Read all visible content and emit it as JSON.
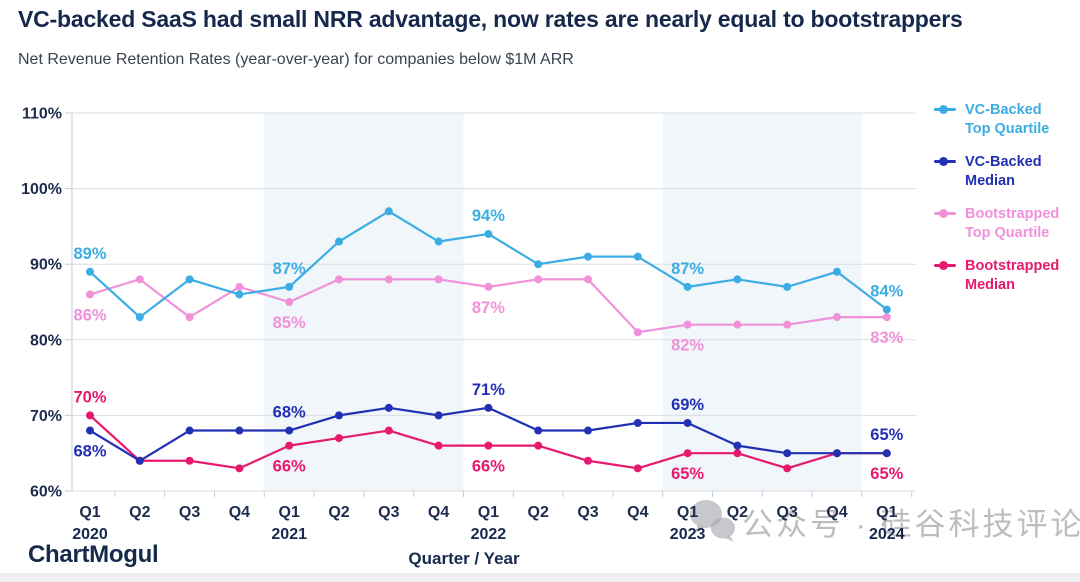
{
  "header": {
    "title": "VC-backed SaaS had small NRR advantage, now rates are nearly equal to bootstrappers",
    "subtitle": "Net Revenue Retention Rates (year-over-year) for companies below $1M ARR"
  },
  "chart_data": {
    "type": "line",
    "title": "VC-backed SaaS had small NRR advantage, now rates are nearly equal to bootstrappers",
    "xlabel": "Quarter / Year",
    "ylabel": "",
    "ylim": [
      60,
      110
    ],
    "yticks": [
      60,
      70,
      80,
      90,
      100,
      110
    ],
    "ytick_suffix": "%",
    "grid": true,
    "legend_position": "right",
    "categories": [
      "Q1",
      "Q2",
      "Q3",
      "Q4",
      "Q1",
      "Q2",
      "Q3",
      "Q4",
      "Q1",
      "Q2",
      "Q3",
      "Q4",
      "Q1",
      "Q2",
      "Q3",
      "Q4",
      "Q1"
    ],
    "year_labels": [
      {
        "index": 0,
        "year": "2020"
      },
      {
        "index": 4,
        "year": "2021"
      },
      {
        "index": 8,
        "year": "2022"
      },
      {
        "index": 12,
        "year": "2023"
      },
      {
        "index": 16,
        "year": "2024"
      }
    ],
    "shaded_year_bands": [
      "2021",
      "2023"
    ],
    "series": [
      {
        "name": "VC-Backed Top Quartile",
        "name_lines": [
          "VC-Backed",
          "Top Quartile"
        ],
        "color": "#3BADE3",
        "values": [
          89,
          83,
          88,
          86,
          87,
          93,
          97,
          93,
          94,
          90,
          91,
          91,
          87,
          88,
          87,
          89,
          84
        ]
      },
      {
        "name": "VC-Backed Median",
        "name_lines": [
          "VC-Backed",
          "Median"
        ],
        "color": "#2230B4",
        "values": [
          68,
          64,
          68,
          68,
          68,
          70,
          71,
          70,
          71,
          68,
          68,
          69,
          69,
          66,
          65,
          65,
          65
        ]
      },
      {
        "name": "Bootstrapped Top Quartile",
        "name_lines": [
          "Bootstrapped",
          "Top Quartile"
        ],
        "color": "#F191DA",
        "values": [
          86,
          88,
          83,
          87,
          85,
          88,
          88,
          88,
          87,
          88,
          88,
          81,
          82,
          82,
          82,
          83,
          83
        ]
      },
      {
        "name": "Bootstrapped Median",
        "name_lines": [
          "Bootstrapped",
          "Median"
        ],
        "color": "#E7196F",
        "values": [
          70,
          64,
          64,
          63,
          66,
          67,
          68,
          66,
          66,
          66,
          64,
          63,
          65,
          65,
          63,
          65,
          65
        ]
      }
    ],
    "annotations": [
      {
        "series": 0,
        "point": 0,
        "text": "89%",
        "position": "above"
      },
      {
        "series": 0,
        "point": 4,
        "text": "87%",
        "position": "above"
      },
      {
        "series": 0,
        "point": 8,
        "text": "94%",
        "position": "above"
      },
      {
        "series": 0,
        "point": 12,
        "text": "87%",
        "position": "above"
      },
      {
        "series": 0,
        "point": 16,
        "text": "84%",
        "position": "above"
      },
      {
        "series": 1,
        "point": 0,
        "text": "68%",
        "position": "below"
      },
      {
        "series": 1,
        "point": 4,
        "text": "68%",
        "position": "above"
      },
      {
        "series": 1,
        "point": 8,
        "text": "71%",
        "position": "above"
      },
      {
        "series": 1,
        "point": 12,
        "text": "69%",
        "position": "above"
      },
      {
        "series": 1,
        "point": 16,
        "text": "65%",
        "position": "above"
      },
      {
        "series": 2,
        "point": 0,
        "text": "86%",
        "position": "below"
      },
      {
        "series": 2,
        "point": 4,
        "text": "85%",
        "position": "below"
      },
      {
        "series": 2,
        "point": 8,
        "text": "87%",
        "position": "below"
      },
      {
        "series": 2,
        "point": 12,
        "text": "82%",
        "position": "below"
      },
      {
        "series": 2,
        "point": 16,
        "text": "83%",
        "position": "below"
      },
      {
        "series": 3,
        "point": 0,
        "text": "70%",
        "position": "above"
      },
      {
        "series": 3,
        "point": 4,
        "text": "66%",
        "position": "below"
      },
      {
        "series": 3,
        "point": 8,
        "text": "66%",
        "position": "below"
      },
      {
        "series": 3,
        "point": 12,
        "text": "65%",
        "position": "below"
      },
      {
        "series": 3,
        "point": 16,
        "text": "65%",
        "position": "below"
      }
    ],
    "colors": {
      "year_band": "#F0F6F9",
      "gridline": "#DBDDE0",
      "axis": "#C7CCD3",
      "axis_text": "#1D2C4C",
      "year_text": "#16294C"
    }
  },
  "footer": {
    "brand": "ChartMogul"
  },
  "watermark": {
    "icon": "wechat-logo",
    "text": "公众号 · 硅谷科技评论"
  }
}
